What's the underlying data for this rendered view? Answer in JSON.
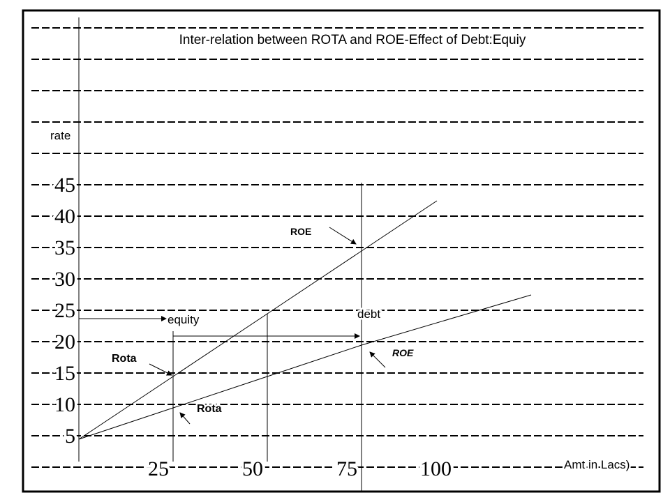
{
  "chart_data": {
    "type": "line",
    "title": "Inter-relation between ROTA and ROE-Effect of Debt:Equiy",
    "y_label": "rate",
    "x_label": "Amt in Lacs)",
    "series": [
      {
        "name": "ROE",
        "color": "#000000",
        "x": [
          0,
          25,
          50,
          75,
          95
        ],
        "values": [
          5,
          15,
          25,
          35,
          43
        ]
      },
      {
        "name": "Rota",
        "color": "#000000",
        "x": [
          0,
          25,
          75,
          120
        ],
        "values": [
          5,
          10,
          20,
          28
        ]
      }
    ],
    "xlim": [
      0,
      150
    ],
    "ylim": [
      0,
      72
    ],
    "xticks": [
      25,
      50,
      75,
      100
    ],
    "yticks": [
      5,
      10,
      15,
      20,
      25,
      30,
      35,
      40,
      45
    ],
    "y_gridlines": [
      0,
      5,
      10,
      15,
      20,
      25,
      30,
      35,
      40,
      45,
      50,
      55,
      60,
      65,
      70
    ],
    "annotations": [
      "ROE",
      "ROE",
      "Rota",
      "Rota",
      "equity",
      "debt"
    ]
  }
}
